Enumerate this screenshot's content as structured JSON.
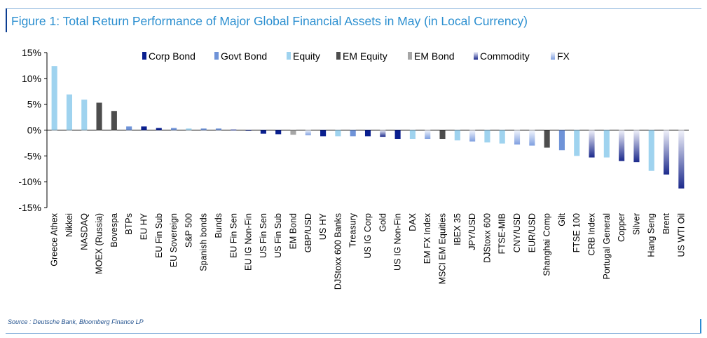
{
  "title": "Figure 1: Total Return Performance of Major Global Financial Assets in May (in Local Currency)",
  "source": "Source : Deutsche Bank, Bloomberg Finance LP",
  "chart_data": {
    "type": "bar",
    "title": "Figure 1: Total Return Performance of Major Global Financial Assets in May (in Local Currency)",
    "xlabel": "",
    "ylabel": "",
    "ylim": [
      -15,
      15
    ],
    "yticks": [
      15,
      10,
      5,
      0,
      -5,
      -10,
      -15
    ],
    "ytick_labels": [
      "15%",
      "10%",
      "5%",
      "0%",
      "-5%",
      "-10%",
      "-15%"
    ],
    "grid": false,
    "legend_position": "top",
    "legend": [
      {
        "name": "Corp Bond",
        "color": "#0a1f8f",
        "gradient": false
      },
      {
        "name": "Govt Bond",
        "color": "#6f93d8",
        "gradient": false
      },
      {
        "name": "Equity",
        "color": "#9fd3ef",
        "gradient": false
      },
      {
        "name": "EM Equity",
        "color": "#4d4d4d",
        "gradient": false
      },
      {
        "name": "EM Bond",
        "color": "#a6a6a6",
        "gradient": false
      },
      {
        "name": "Commodity",
        "color": "#1c2a8c",
        "gradient": true
      },
      {
        "name": "FX",
        "color": "#7f9fe0",
        "gradient": true
      }
    ],
    "categories": [
      "Greece Athex",
      "Nikkei",
      "NASDAQ",
      "MOEX (Russia)",
      "Bovespa",
      "BTPs",
      "EU HY",
      "EU Fin Sub",
      "EU Sovereign",
      "S&P 500",
      "Spanish bonds",
      "Bunds",
      "EU Fin Sen",
      "EU IG Non-Fin",
      "US Fin Sen",
      "US Fin Sub",
      "EM Bond",
      "GBP/USD",
      "US HY",
      "DJStoxx 600 Banks",
      "Treasury",
      "US IG Corp",
      "Gold",
      "US IG Non-Fin",
      "DAX",
      "EM FX Index",
      "MSCI EM Equities",
      "IBEX 35",
      "JPY/USD",
      "DJStoxx 600",
      "FTSE-MIB",
      "CNY/USD",
      "EUR/USD",
      "Shanghai Comp",
      "Gilt",
      "FTSE 100",
      "CRB Index",
      "Portugal General",
      "Copper",
      "Silver",
      "Hang Seng",
      "Brent",
      "US WTI Oil"
    ],
    "values": [
      12.4,
      6.9,
      5.9,
      5.3,
      3.7,
      0.7,
      0.7,
      0.4,
      0.4,
      0.3,
      0.3,
      0.3,
      0.1,
      -0.1,
      -0.7,
      -0.8,
      -0.9,
      -1.0,
      -1.2,
      -1.2,
      -1.2,
      -1.2,
      -1.3,
      -1.7,
      -1.7,
      -1.7,
      -1.7,
      -2.0,
      -2.2,
      -2.4,
      -2.6,
      -2.8,
      -3.0,
      -3.4,
      -3.9,
      -5.0,
      -5.3,
      -5.3,
      -6.0,
      -6.2,
      -7.9,
      -8.6,
      -11.3
    ],
    "asset_class": [
      "Equity",
      "Equity",
      "Equity",
      "EM Equity",
      "EM Equity",
      "Govt Bond",
      "Corp Bond",
      "Corp Bond",
      "Govt Bond",
      "Equity",
      "Govt Bond",
      "Govt Bond",
      "Corp Bond",
      "Corp Bond",
      "Corp Bond",
      "Corp Bond",
      "EM Bond",
      "FX",
      "Corp Bond",
      "Equity",
      "Govt Bond",
      "Corp Bond",
      "Commodity",
      "Corp Bond",
      "Equity",
      "FX",
      "EM Equity",
      "Equity",
      "FX",
      "Equity",
      "Equity",
      "FX",
      "FX",
      "EM Equity",
      "Govt Bond",
      "Equity",
      "Commodity",
      "Equity",
      "Commodity",
      "Commodity",
      "Equity",
      "Commodity",
      "Commodity"
    ]
  }
}
